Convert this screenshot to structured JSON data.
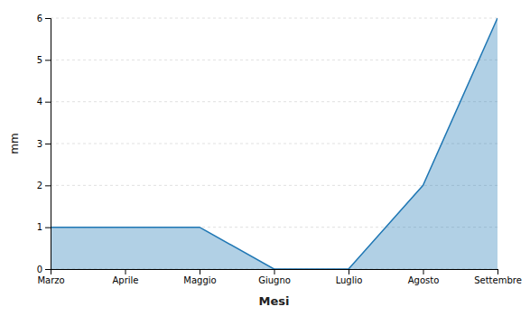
{
  "chart_data": {
    "type": "area",
    "categories": [
      "Marzo",
      "Aprile",
      "Maggio",
      "Giugno",
      "Luglio",
      "Agosto",
      "Settembre"
    ],
    "values": [
      1.0,
      1.0,
      1.0,
      0.0,
      0.0,
      2.0,
      6.0
    ],
    "xlabel": "Mesi",
    "ylabel": "mm",
    "ylim": [
      0,
      6
    ],
    "yticks": [
      0,
      1,
      2,
      3,
      4,
      5,
      6
    ],
    "grid": true
  }
}
